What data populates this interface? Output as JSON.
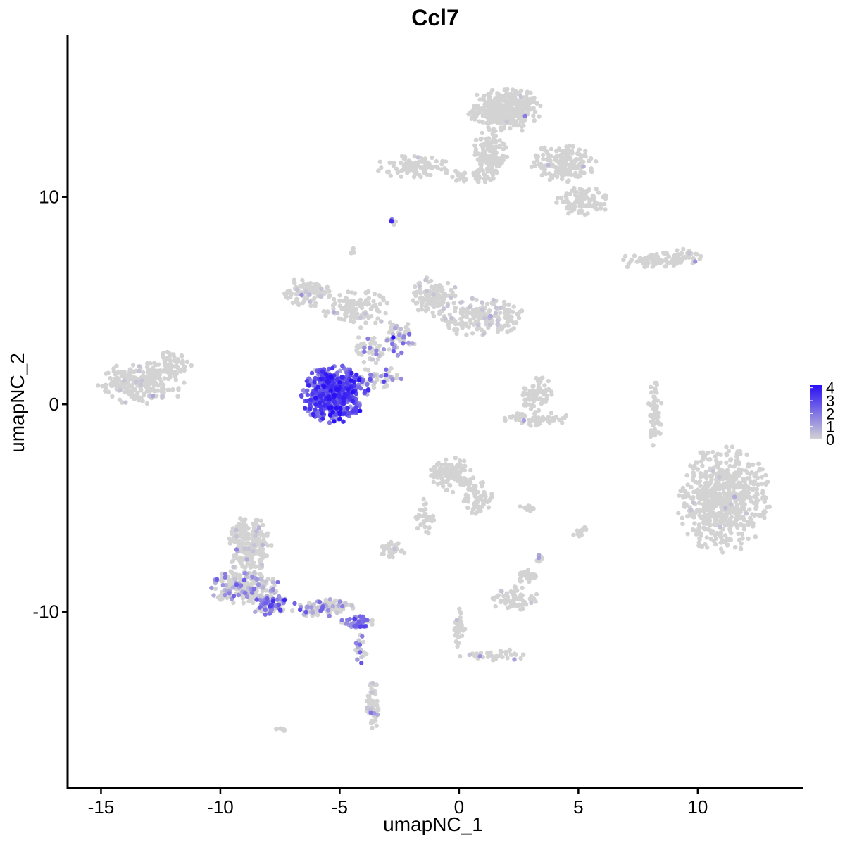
{
  "chart_data": {
    "type": "scatter",
    "title": "Ccl7",
    "xlabel": "umapNC_1",
    "ylabel": "umapNC_2",
    "xlim": [
      -16.4,
      14.4
    ],
    "ylim": [
      -18.5,
      17.8
    ],
    "x_ticks": [
      -15,
      -10,
      -5,
      0,
      5,
      10
    ],
    "y_ticks": [
      -10,
      0,
      10
    ],
    "x_tick_labels": [
      "-15",
      "-10",
      "-5",
      "0",
      "5",
      "10"
    ],
    "y_tick_labels": [
      "-10",
      "0",
      "10"
    ],
    "legend": {
      "placement": "right",
      "min": 0,
      "max": 4.2,
      "breaks": [
        0,
        1,
        2,
        3,
        4
      ],
      "break_labels": [
        "0",
        "1",
        "2",
        "3",
        "4"
      ]
    },
    "colors": {
      "low": "#d3d3d3",
      "high": "#2a10f5"
    },
    "grid": false,
    "clusters": [
      {
        "cx": 1.9,
        "cy": 14.2,
        "rx": 1.5,
        "ry": 1.1,
        "n": 360,
        "expr": 0.0,
        "expr_rate": 0.005
      },
      {
        "cx": 1.3,
        "cy": 12.0,
        "rx": 0.7,
        "ry": 1.3,
        "n": 130,
        "expr": 0.0,
        "expr_rate": 0.0
      },
      {
        "cx": 4.3,
        "cy": 11.6,
        "rx": 1.4,
        "ry": 0.9,
        "n": 170,
        "expr": 0.0,
        "expr_rate": 0.01
      },
      {
        "cx": 5.2,
        "cy": 9.8,
        "rx": 1.1,
        "ry": 0.7,
        "n": 110,
        "expr": 0.0,
        "expr_rate": 0.0
      },
      {
        "cx": -1.9,
        "cy": 11.4,
        "rx": 1.6,
        "ry": 0.6,
        "n": 90,
        "expr": 0.0,
        "expr_rate": 0.03
      },
      {
        "cx": 0.6,
        "cy": 11.0,
        "rx": 1.2,
        "ry": 0.3,
        "n": 40,
        "expr": 0.0,
        "expr_rate": 0.0
      },
      {
        "cx": 8.3,
        "cy": 6.9,
        "rx": 1.8,
        "ry": 0.35,
        "n": 60,
        "expr": 0.0,
        "expr_rate": 0.0
      },
      {
        "cx": 9.2,
        "cy": 7.1,
        "rx": 0.9,
        "ry": 0.4,
        "n": 40,
        "expr": 0.0,
        "expr_rate": 0.05
      },
      {
        "cx": -6.3,
        "cy": 5.4,
        "rx": 1.0,
        "ry": 0.7,
        "n": 90,
        "expr": 0.1,
        "expr_rate": 0.06
      },
      {
        "cx": -4.3,
        "cy": 4.6,
        "rx": 1.4,
        "ry": 0.9,
        "n": 120,
        "expr": 0.1,
        "expr_rate": 0.06
      },
      {
        "cx": -1.0,
        "cy": 5.2,
        "rx": 1.0,
        "ry": 1.0,
        "n": 110,
        "expr": 0.1,
        "expr_rate": 0.1
      },
      {
        "cx": 0.9,
        "cy": 4.2,
        "rx": 1.8,
        "ry": 0.9,
        "n": 180,
        "expr": 0.1,
        "expr_rate": 0.07
      },
      {
        "cx": -2.6,
        "cy": 3.2,
        "rx": 0.8,
        "ry": 0.8,
        "n": 60,
        "expr": 1.2,
        "expr_rate": 0.35
      },
      {
        "cx": -3.8,
        "cy": 2.6,
        "rx": 0.6,
        "ry": 1.0,
        "n": 45,
        "expr": 1.0,
        "expr_rate": 0.25
      },
      {
        "cx": -3.3,
        "cy": 1.3,
        "rx": 0.9,
        "ry": 0.5,
        "n": 40,
        "expr": 1.4,
        "expr_rate": 0.45
      },
      {
        "cx": -5.2,
        "cy": 0.5,
        "rx": 1.4,
        "ry": 1.35,
        "n": 520,
        "expr": 2.6,
        "expr_rate": 0.92
      },
      {
        "cx": -13.3,
        "cy": 1.0,
        "rx": 1.8,
        "ry": 1.0,
        "n": 230,
        "expr": 0.0,
        "expr_rate": 0.03
      },
      {
        "cx": -11.9,
        "cy": 2.0,
        "rx": 0.7,
        "ry": 0.6,
        "n": 50,
        "expr": 0.0,
        "expr_rate": 0.0
      },
      {
        "cx": 3.2,
        "cy": 0.5,
        "rx": 0.7,
        "ry": 0.9,
        "n": 70,
        "expr": 0.0,
        "expr_rate": 0.0
      },
      {
        "cx": 3.3,
        "cy": -0.7,
        "rx": 1.4,
        "ry": 0.4,
        "n": 60,
        "expr": 0.0,
        "expr_rate": 0.02
      },
      {
        "cx": 8.2,
        "cy": -0.5,
        "rx": 0.3,
        "ry": 1.6,
        "n": 50,
        "expr": 0.0,
        "expr_rate": 0.0
      },
      {
        "cx": 11.1,
        "cy": -4.6,
        "rx": 1.9,
        "ry": 2.5,
        "n": 620,
        "expr": 0.0,
        "expr_rate": 0.01
      },
      {
        "cx": -0.3,
        "cy": -3.4,
        "rx": 0.9,
        "ry": 0.8,
        "n": 110,
        "expr": 0.0,
        "expr_rate": 0.0
      },
      {
        "cx": 0.8,
        "cy": -4.6,
        "rx": 0.6,
        "ry": 0.9,
        "n": 60,
        "expr": 0.0,
        "expr_rate": 0.0
      },
      {
        "cx": -1.4,
        "cy": -5.6,
        "rx": 0.4,
        "ry": 1.0,
        "n": 30,
        "expr": 0.0,
        "expr_rate": 0.0
      },
      {
        "cx": -2.8,
        "cy": -7.0,
        "rx": 0.6,
        "ry": 0.4,
        "n": 40,
        "expr": 0.0,
        "expr_rate": 0.05
      },
      {
        "cx": -8.8,
        "cy": -6.8,
        "rx": 0.9,
        "ry": 1.4,
        "n": 220,
        "expr": 0.2,
        "expr_rate": 0.08
      },
      {
        "cx": -9.0,
        "cy": -8.8,
        "rx": 1.4,
        "ry": 0.8,
        "n": 230,
        "expr": 0.8,
        "expr_rate": 0.3
      },
      {
        "cx": -7.9,
        "cy": -9.7,
        "rx": 0.8,
        "ry": 0.5,
        "n": 90,
        "expr": 1.8,
        "expr_rate": 0.65
      },
      {
        "cx": -5.8,
        "cy": -9.8,
        "rx": 1.4,
        "ry": 0.4,
        "n": 110,
        "expr": 0.9,
        "expr_rate": 0.35
      },
      {
        "cx": -4.3,
        "cy": -10.5,
        "rx": 0.7,
        "ry": 0.3,
        "n": 60,
        "expr": 2.0,
        "expr_rate": 0.7
      },
      {
        "cx": -4.1,
        "cy": -11.8,
        "rx": 0.25,
        "ry": 0.8,
        "n": 20,
        "expr": 1.2,
        "expr_rate": 0.5
      },
      {
        "cx": -3.6,
        "cy": -14.5,
        "rx": 0.3,
        "ry": 1.1,
        "n": 60,
        "expr": 0.4,
        "expr_rate": 0.15
      },
      {
        "cx": 0.0,
        "cy": -10.8,
        "rx": 0.25,
        "ry": 1.1,
        "n": 30,
        "expr": 0.0,
        "expr_rate": 0.05
      },
      {
        "cx": 1.5,
        "cy": -12.1,
        "rx": 1.5,
        "ry": 0.3,
        "n": 35,
        "expr": 0.3,
        "expr_rate": 0.1
      },
      {
        "cx": 2.4,
        "cy": -9.4,
        "rx": 1.0,
        "ry": 0.6,
        "n": 60,
        "expr": 0.0,
        "expr_rate": 0.05
      },
      {
        "cx": 2.8,
        "cy": -8.3,
        "rx": 0.4,
        "ry": 0.4,
        "n": 25,
        "expr": 0.0,
        "expr_rate": 0.0
      },
      {
        "cx": 5.1,
        "cy": -6.2,
        "rx": 0.3,
        "ry": 0.4,
        "n": 15,
        "expr": 0.0,
        "expr_rate": 0.0
      },
      {
        "cx": 3.4,
        "cy": -7.4,
        "rx": 0.15,
        "ry": 0.3,
        "n": 10,
        "expr": 0.4,
        "expr_rate": 0.3
      },
      {
        "cx": 2.8,
        "cy": -5.0,
        "rx": 0.6,
        "ry": 0.15,
        "n": 12,
        "expr": 0.0,
        "expr_rate": 0.0
      },
      {
        "cx": -2.8,
        "cy": 8.8,
        "rx": 0.15,
        "ry": 0.15,
        "n": 6,
        "expr": 2.5,
        "expr_rate": 0.4
      },
      {
        "cx": -4.5,
        "cy": 7.4,
        "rx": 0.15,
        "ry": 0.2,
        "n": 6,
        "expr": 0.0,
        "expr_rate": 0.0
      },
      {
        "cx": -7.5,
        "cy": -15.7,
        "rx": 0.2,
        "ry": 0.15,
        "n": 5,
        "expr": 0.0,
        "expr_rate": 0.0
      }
    ]
  }
}
